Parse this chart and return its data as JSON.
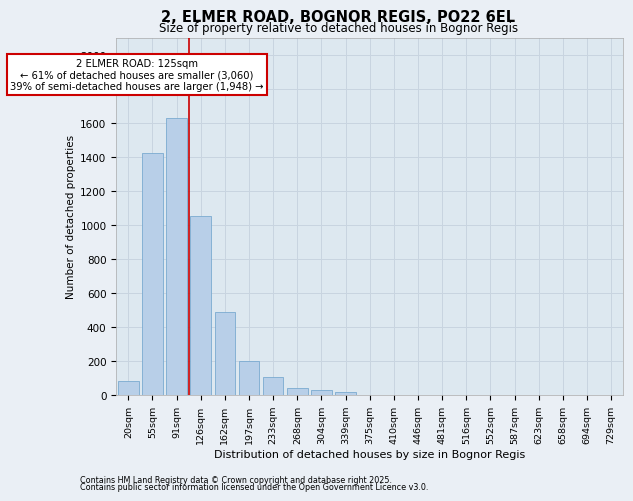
{
  "title_line1": "2, ELMER ROAD, BOGNOR REGIS, PO22 6EL",
  "title_line2": "Size of property relative to detached houses in Bognor Regis",
  "xlabel": "Distribution of detached houses by size in Bognor Regis",
  "ylabel": "Number of detached properties",
  "categories": [
    "20sqm",
    "55sqm",
    "91sqm",
    "126sqm",
    "162sqm",
    "197sqm",
    "233sqm",
    "268sqm",
    "304sqm",
    "339sqm",
    "375sqm",
    "410sqm",
    "446sqm",
    "481sqm",
    "516sqm",
    "552sqm",
    "587sqm",
    "623sqm",
    "658sqm",
    "694sqm",
    "729sqm"
  ],
  "values": [
    80,
    1420,
    1630,
    1050,
    490,
    200,
    105,
    40,
    30,
    15,
    0,
    0,
    0,
    0,
    0,
    0,
    0,
    0,
    0,
    0,
    0
  ],
  "bar_color": "#b8cfe8",
  "bar_edge_color": "#7aaad0",
  "annotation_box_text": "2 ELMER ROAD: 125sqm\n← 61% of detached houses are smaller (3,060)\n39% of semi-detached houses are larger (1,948) →",
  "annotation_box_color": "#cc0000",
  "vertical_line_x": 2.5,
  "ylim": [
    0,
    2100
  ],
  "yticks": [
    0,
    200,
    400,
    600,
    800,
    1000,
    1200,
    1400,
    1600,
    1800,
    2000
  ],
  "grid_color": "#c8d4e0",
  "background_color": "#eaeff5",
  "plot_bg_color": "#dde8f0",
  "footer_line1": "Contains HM Land Registry data © Crown copyright and database right 2025.",
  "footer_line2": "Contains public sector information licensed under the Open Government Licence v3.0."
}
